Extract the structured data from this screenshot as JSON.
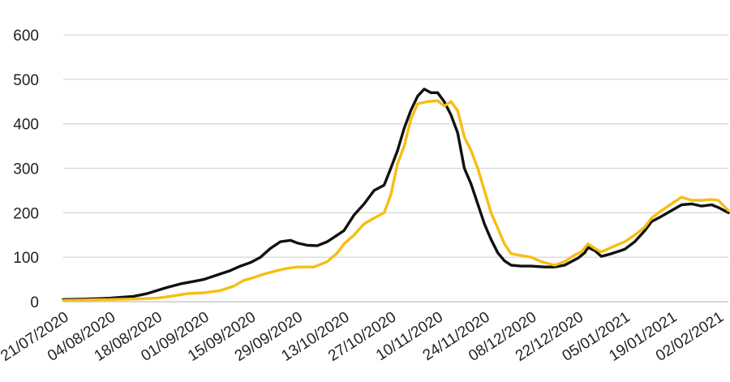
{
  "chart_data": {
    "type": "line",
    "title": "",
    "xlabel": "",
    "ylabel": "",
    "ylim": [
      0,
      600
    ],
    "yticks": [
      0,
      100,
      200,
      300,
      400,
      500,
      600
    ],
    "grid": "horizontal",
    "legend": "none",
    "x_start": "21/07/2020",
    "x_end": "05/02/2021",
    "x_tick_labels": [
      "21/07/2020",
      "04/08/2020",
      "18/08/2020",
      "01/09/2020",
      "15/09/2020",
      "29/09/2020",
      "13/10/2020",
      "27/10/2020",
      "10/11/2020",
      "24/11/2020",
      "08/12/2020",
      "22/12/2020",
      "05/01/2021",
      "19/01/2021",
      "02/02/2021"
    ],
    "series": [
      {
        "color": "#111111",
        "points": [
          [
            "21/07/2020",
            5
          ],
          [
            "28/07/2020",
            6
          ],
          [
            "04/08/2020",
            8
          ],
          [
            "11/08/2020",
            12
          ],
          [
            "15/08/2020",
            18
          ],
          [
            "18/08/2020",
            25
          ],
          [
            "21/08/2020",
            32
          ],
          [
            "25/08/2020",
            40
          ],
          [
            "30/08/2020",
            47
          ],
          [
            "01/09/2020",
            50
          ],
          [
            "05/09/2020",
            60
          ],
          [
            "09/09/2020",
            70
          ],
          [
            "12/09/2020",
            80
          ],
          [
            "15/09/2020",
            88
          ],
          [
            "18/09/2020",
            100
          ],
          [
            "21/09/2020",
            120
          ],
          [
            "24/09/2020",
            135
          ],
          [
            "27/09/2020",
            138
          ],
          [
            "29/09/2020",
            132
          ],
          [
            "02/10/2020",
            127
          ],
          [
            "05/10/2020",
            126
          ],
          [
            "08/10/2020",
            135
          ],
          [
            "11/10/2020",
            150
          ],
          [
            "13/10/2020",
            160
          ],
          [
            "16/10/2020",
            195
          ],
          [
            "19/10/2020",
            220
          ],
          [
            "22/10/2020",
            250
          ],
          [
            "25/10/2020",
            262
          ],
          [
            "27/10/2020",
            300
          ],
          [
            "29/10/2020",
            340
          ],
          [
            "31/10/2020",
            390
          ],
          [
            "02/11/2020",
            430
          ],
          [
            "04/11/2020",
            462
          ],
          [
            "06/11/2020",
            478
          ],
          [
            "08/11/2020",
            470
          ],
          [
            "10/11/2020",
            470
          ],
          [
            "12/11/2020",
            450
          ],
          [
            "14/11/2020",
            420
          ],
          [
            "16/11/2020",
            380
          ],
          [
            "18/11/2020",
            300
          ],
          [
            "20/11/2020",
            265
          ],
          [
            "22/11/2020",
            220
          ],
          [
            "24/11/2020",
            175
          ],
          [
            "26/11/2020",
            140
          ],
          [
            "28/11/2020",
            110
          ],
          [
            "30/11/2020",
            92
          ],
          [
            "02/12/2020",
            82
          ],
          [
            "05/12/2020",
            80
          ],
          [
            "08/12/2020",
            80
          ],
          [
            "12/12/2020",
            78
          ],
          [
            "15/12/2020",
            78
          ],
          [
            "18/12/2020",
            82
          ],
          [
            "20/12/2020",
            90
          ],
          [
            "22/12/2020",
            98
          ],
          [
            "24/12/2020",
            110
          ],
          [
            "25/12/2020",
            122
          ],
          [
            "27/12/2020",
            115
          ],
          [
            "29/12/2020",
            102
          ],
          [
            "01/01/2021",
            108
          ],
          [
            "05/01/2021",
            118
          ],
          [
            "08/01/2021",
            135
          ],
          [
            "11/01/2021",
            160
          ],
          [
            "13/01/2021",
            180
          ],
          [
            "16/01/2021",
            192
          ],
          [
            "19/01/2021",
            205
          ],
          [
            "22/01/2021",
            218
          ],
          [
            "25/01/2021",
            220
          ],
          [
            "28/01/2021",
            215
          ],
          [
            "31/01/2021",
            218
          ],
          [
            "02/02/2021",
            212
          ],
          [
            "05/02/2021",
            200
          ]
        ]
      },
      {
        "color": "#F5BE13",
        "points": [
          [
            "21/07/2020",
            3
          ],
          [
            "28/07/2020",
            4
          ],
          [
            "04/08/2020",
            5
          ],
          [
            "11/08/2020",
            6
          ],
          [
            "18/08/2020",
            8
          ],
          [
            "22/08/2020",
            12
          ],
          [
            "27/08/2020",
            18
          ],
          [
            "01/09/2020",
            20
          ],
          [
            "06/09/2020",
            25
          ],
          [
            "10/09/2020",
            35
          ],
          [
            "13/09/2020",
            48
          ],
          [
            "15/09/2020",
            52
          ],
          [
            "19/09/2020",
            62
          ],
          [
            "23/09/2020",
            70
          ],
          [
            "26/09/2020",
            75
          ],
          [
            "29/09/2020",
            78
          ],
          [
            "04/10/2020",
            78
          ],
          [
            "08/10/2020",
            90
          ],
          [
            "11/10/2020",
            110
          ],
          [
            "13/10/2020",
            130
          ],
          [
            "16/10/2020",
            150
          ],
          [
            "19/10/2020",
            175
          ],
          [
            "22/10/2020",
            188
          ],
          [
            "25/10/2020",
            200
          ],
          [
            "27/10/2020",
            240
          ],
          [
            "29/10/2020",
            310
          ],
          [
            "31/10/2020",
            350
          ],
          [
            "02/11/2020",
            410
          ],
          [
            "04/11/2020",
            445
          ],
          [
            "07/11/2020",
            450
          ],
          [
            "10/11/2020",
            452
          ],
          [
            "12/11/2020",
            440
          ],
          [
            "14/11/2020",
            450
          ],
          [
            "16/11/2020",
            430
          ],
          [
            "18/11/2020",
            370
          ],
          [
            "20/11/2020",
            340
          ],
          [
            "22/11/2020",
            300
          ],
          [
            "24/11/2020",
            250
          ],
          [
            "26/11/2020",
            200
          ],
          [
            "28/11/2020",
            165
          ],
          [
            "30/11/2020",
            130
          ],
          [
            "02/12/2020",
            108
          ],
          [
            "05/12/2020",
            104
          ],
          [
            "08/12/2020",
            100
          ],
          [
            "11/12/2020",
            90
          ],
          [
            "15/12/2020",
            82
          ],
          [
            "18/12/2020",
            90
          ],
          [
            "21/12/2020",
            105
          ],
          [
            "23/12/2020",
            112
          ],
          [
            "25/12/2020",
            130
          ],
          [
            "27/12/2020",
            120
          ],
          [
            "29/12/2020",
            112
          ],
          [
            "01/01/2021",
            122
          ],
          [
            "05/01/2021",
            135
          ],
          [
            "08/01/2021",
            150
          ],
          [
            "11/01/2021",
            168
          ],
          [
            "13/01/2021",
            188
          ],
          [
            "16/01/2021",
            205
          ],
          [
            "19/01/2021",
            220
          ],
          [
            "22/01/2021",
            235
          ],
          [
            "25/01/2021",
            228
          ],
          [
            "28/01/2021",
            228
          ],
          [
            "31/01/2021",
            230
          ],
          [
            "02/02/2021",
            228
          ],
          [
            "05/02/2021",
            205
          ]
        ]
      }
    ]
  }
}
